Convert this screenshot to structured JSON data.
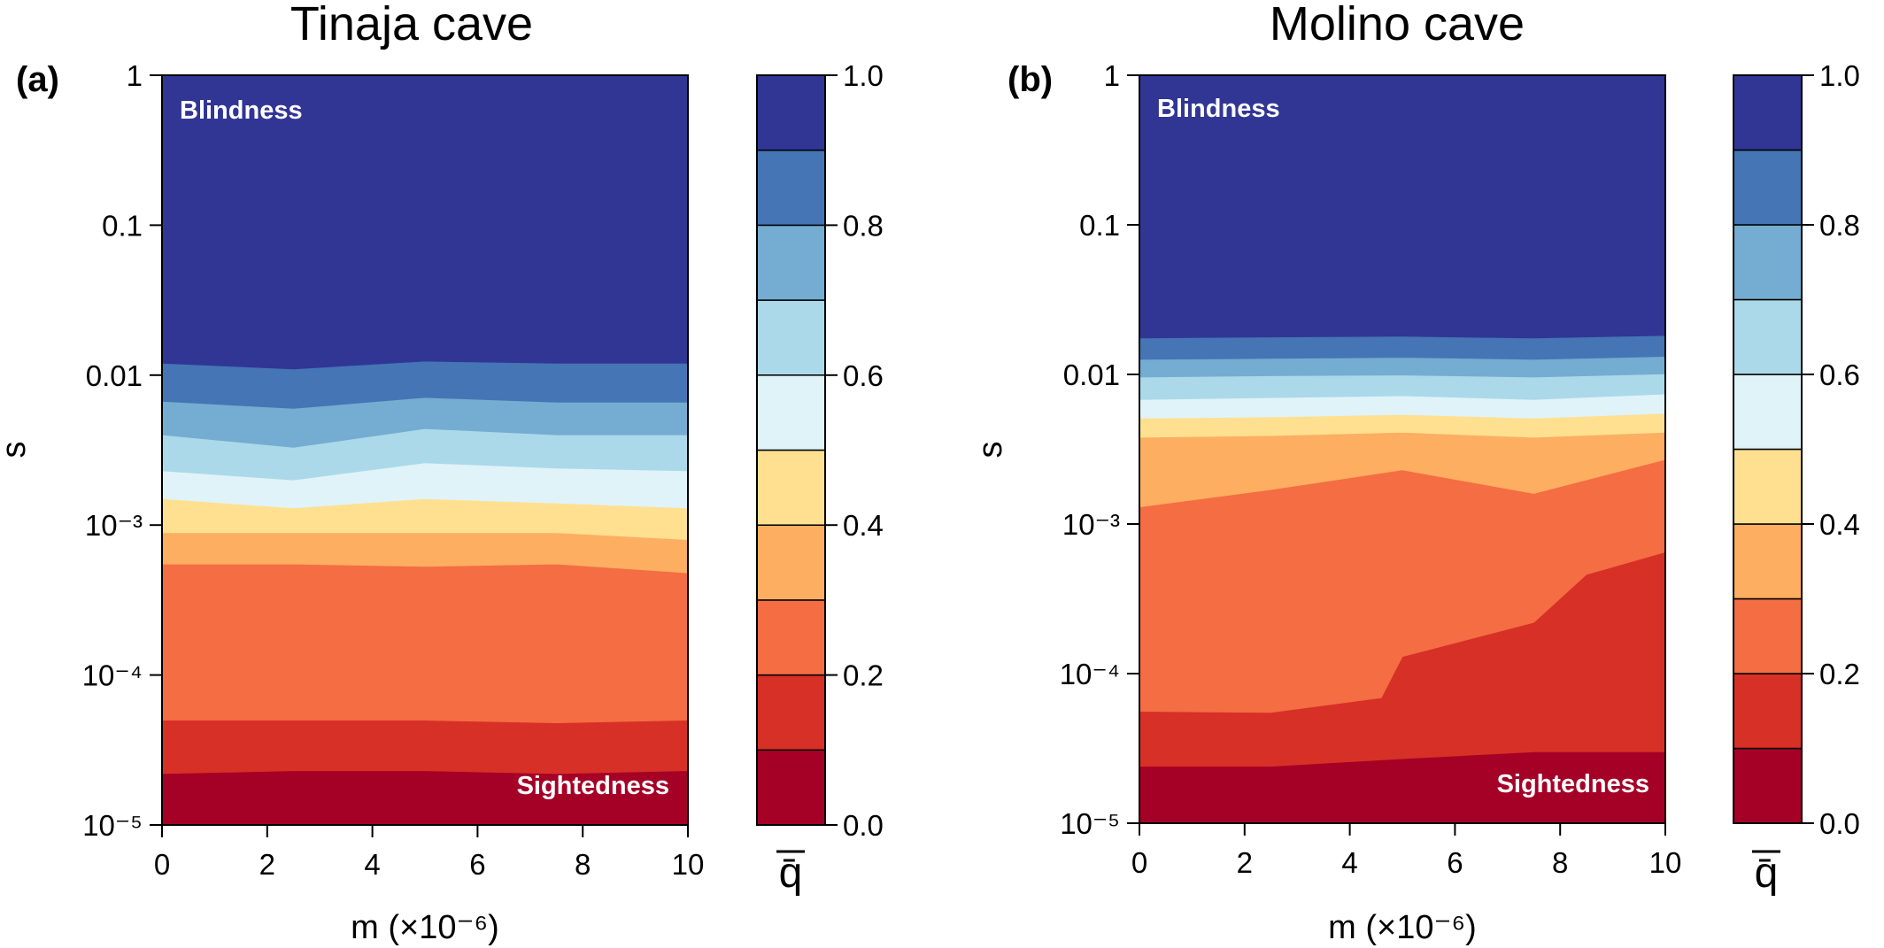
{
  "chart_data": [
    {
      "type": "heatmap",
      "panel_label": "(a)",
      "title": "Tinaja cave",
      "xlabel": "m (×10⁻⁶)",
      "ylabel": "s",
      "y_scale": "log",
      "xlim": [
        0,
        10
      ],
      "ylim": [
        1e-05,
        1
      ],
      "x_ticks": [
        "0",
        "2",
        "4",
        "6",
        "8",
        "10"
      ],
      "y_ticks": [
        "10⁻⁵",
        "10⁻⁴",
        "10⁻³",
        "0.01",
        "0.1",
        "1"
      ],
      "annotations": [
        "Blindness",
        "Sightedness"
      ],
      "x": [
        0,
        2.5,
        5,
        7.5,
        10
      ],
      "levels": [
        0,
        0.1,
        0.2,
        0.3,
        0.4,
        0.5,
        0.6,
        0.7,
        0.8,
        0.9,
        1.0
      ],
      "contour_boundaries_s": [
        {
          "level": 0.1,
          "s": [
            2.2e-05,
            2.3e-05,
            2.3e-05,
            2.2e-05,
            2.3e-05
          ]
        },
        {
          "level": 0.2,
          "s": [
            5e-05,
            5e-05,
            5e-05,
            4.8e-05,
            5e-05
          ]
        },
        {
          "level": 0.3,
          "s": [
            0.00055,
            0.00055,
            0.00053,
            0.00055,
            0.00048
          ]
        },
        {
          "level": 0.4,
          "s": [
            0.00089,
            0.00089,
            0.00089,
            0.00089,
            0.0008
          ]
        },
        {
          "level": 0.5,
          "s": [
            0.0015,
            0.0013,
            0.0015,
            0.0014,
            0.0013
          ]
        },
        {
          "level": 0.6,
          "s": [
            0.0023,
            0.002,
            0.0026,
            0.0024,
            0.0023
          ]
        },
        {
          "level": 0.7,
          "s": [
            0.004,
            0.0033,
            0.0044,
            0.004,
            0.004
          ]
        },
        {
          "level": 0.8,
          "s": [
            0.0067,
            0.006,
            0.0071,
            0.0066,
            0.0066
          ]
        },
        {
          "level": 0.9,
          "s": [
            0.012,
            0.011,
            0.0124,
            0.012,
            0.012
          ]
        }
      ],
      "colorbar": {
        "label": "q̄",
        "ticks": [
          "0.0",
          "0.2",
          "0.4",
          "0.6",
          "0.8",
          "1.0"
        ]
      }
    },
    {
      "type": "heatmap",
      "panel_label": "(b)",
      "title": "Molino cave",
      "xlabel": "m (×10⁻⁶)",
      "ylabel": "s",
      "y_scale": "log",
      "xlim": [
        0,
        10
      ],
      "ylim": [
        1e-05,
        1
      ],
      "x_ticks": [
        "0",
        "2",
        "4",
        "6",
        "8",
        "10"
      ],
      "y_ticks": [
        "10⁻⁵",
        "10⁻⁴",
        "10⁻³",
        "0.01",
        "0.1",
        "1"
      ],
      "annotations": [
        "Blindness",
        "Sightedness"
      ],
      "levels": [
        0,
        0.1,
        0.2,
        0.3,
        0.4,
        0.5,
        0.6,
        0.7,
        0.8,
        0.9,
        1.0
      ],
      "contour_boundaries_s": [
        {
          "level": 0.1,
          "x": [
            0,
            2.5,
            5,
            7.5,
            10
          ],
          "s": [
            2.4e-05,
            2.4e-05,
            2.7e-05,
            3e-05,
            3e-05
          ]
        },
        {
          "level": 0.2,
          "x": [
            0,
            2.5,
            4.6,
            5,
            7.5,
            8.5,
            10
          ],
          "s": [
            5.6e-05,
            5.5e-05,
            6.9e-05,
            0.00013,
            0.00022,
            0.00046,
            0.00065
          ]
        },
        {
          "level": 0.3,
          "x": [
            0,
            2.5,
            5,
            7.5,
            10
          ],
          "s": [
            0.0013,
            0.0017,
            0.0023,
            0.0016,
            0.0027
          ]
        },
        {
          "level": 0.4,
          "x": [
            0,
            2.5,
            5,
            7.5,
            10
          ],
          "s": [
            0.0038,
            0.0039,
            0.0041,
            0.0038,
            0.0041
          ]
        },
        {
          "level": 0.5,
          "x": [
            0,
            2.5,
            5,
            7.5,
            10
          ],
          "s": [
            0.0051,
            0.0052,
            0.0054,
            0.0051,
            0.0055
          ]
        },
        {
          "level": 0.6,
          "x": [
            0,
            2.5,
            5,
            7.5,
            10
          ],
          "s": [
            0.0068,
            0.007,
            0.0072,
            0.0068,
            0.0074
          ]
        },
        {
          "level": 0.7,
          "x": [
            0,
            2.5,
            5,
            7.5,
            10
          ],
          "s": [
            0.0096,
            0.0098,
            0.0099,
            0.0096,
            0.0101
          ]
        },
        {
          "level": 0.8,
          "x": [
            0,
            2.5,
            5,
            7.5,
            10
          ],
          "s": [
            0.0126,
            0.0128,
            0.013,
            0.0126,
            0.0132
          ]
        },
        {
          "level": 0.9,
          "x": [
            0,
            2.5,
            5,
            7.5,
            10
          ],
          "s": [
            0.0175,
            0.0178,
            0.018,
            0.0175,
            0.0182
          ]
        }
      ],
      "colorbar": {
        "label": "q̄",
        "ticks": [
          "0.0",
          "0.2",
          "0.4",
          "0.6",
          "0.8",
          "1.0"
        ]
      }
    }
  ],
  "colors": {
    "band_colors": [
      "#a50026",
      "#d73027",
      "#f46d43",
      "#fdae61",
      "#fee090",
      "#e0f3f8",
      "#abd9e9",
      "#74add1",
      "#4575b4",
      "#313695"
    ]
  }
}
